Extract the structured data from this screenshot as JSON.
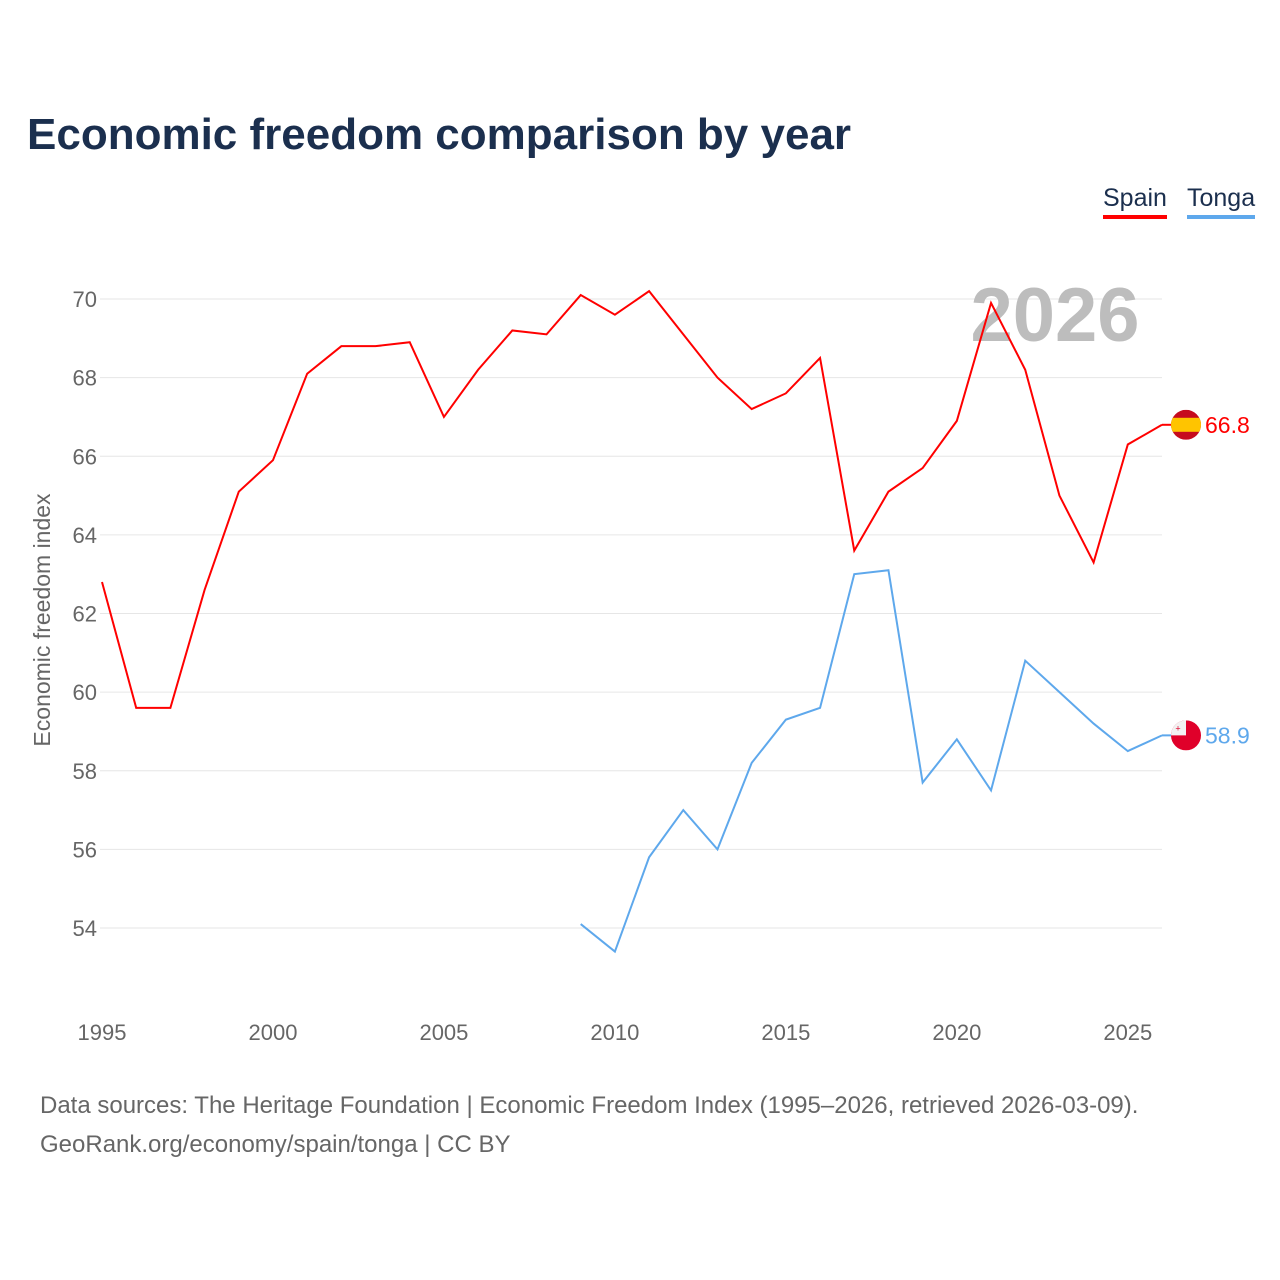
{
  "title": "Economic freedom comparison by year",
  "legend": [
    {
      "label": "Spain",
      "color": "#ff0000"
    },
    {
      "label": "Tonga",
      "color": "#5ea8ec"
    }
  ],
  "watermark_year": "2026",
  "footer": {
    "line1": "Data sources: The Heritage Foundation | Economic Freedom Index (1995–2026, retrieved 2026-03-09).",
    "line2": "GeoRank.org/economy/spain/tonga | CC BY"
  },
  "chart_data": {
    "type": "line",
    "title": "Economic freedom comparison by year",
    "xlabel": "",
    "ylabel": "Economic freedom index",
    "xlim": [
      1995,
      2026
    ],
    "ylim": [
      52.5,
      71
    ],
    "xticks": [
      1995,
      2000,
      2005,
      2010,
      2015,
      2020,
      2025
    ],
    "yticks": [
      54,
      56,
      58,
      60,
      62,
      64,
      66,
      68,
      70
    ],
    "grid": true,
    "legend_position": "top-right",
    "series": [
      {
        "name": "Spain",
        "color": "#ff0000",
        "end_label": "66.8",
        "x": [
          1995,
          1996,
          1997,
          1998,
          1999,
          2000,
          2001,
          2002,
          2003,
          2004,
          2005,
          2006,
          2007,
          2008,
          2009,
          2010,
          2011,
          2012,
          2013,
          2014,
          2015,
          2016,
          2017,
          2018,
          2019,
          2020,
          2021,
          2022,
          2023,
          2024,
          2025,
          2026
        ],
        "y": [
          62.8,
          59.6,
          59.6,
          62.6,
          65.1,
          65.9,
          68.1,
          68.8,
          68.8,
          68.9,
          67.0,
          68.2,
          69.2,
          69.1,
          70.1,
          69.6,
          70.2,
          69.1,
          68.0,
          67.2,
          67.6,
          68.5,
          63.6,
          65.1,
          65.7,
          66.9,
          69.9,
          68.2,
          65.0,
          63.3,
          66.3,
          66.8
        ]
      },
      {
        "name": "Tonga",
        "color": "#5ea8ec",
        "end_label": "58.9",
        "x": [
          2009,
          2010,
          2011,
          2012,
          2013,
          2014,
          2015,
          2016,
          2017,
          2018,
          2019,
          2020,
          2021,
          2022,
          2023,
          2024,
          2025,
          2026
        ],
        "y": [
          54.1,
          53.4,
          55.8,
          57.0,
          56.0,
          58.2,
          59.3,
          59.6,
          63.0,
          63.1,
          57.7,
          58.8,
          57.5,
          60.8,
          60.0,
          59.2,
          58.5,
          58.9
        ]
      }
    ]
  }
}
